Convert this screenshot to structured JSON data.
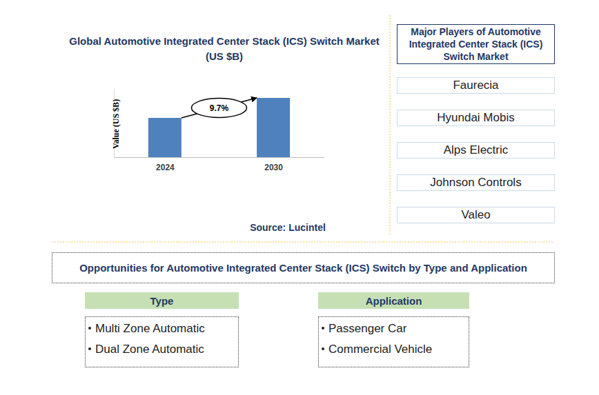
{
  "chart_data": {
    "type": "bar",
    "title": "Global Automotive Integrated Center Stack (ICS) Switch Market (US $B)",
    "ylabel": "Value (US $B)",
    "categories": [
      "2024",
      "2030"
    ],
    "values": [
      57,
      86
    ],
    "color": "#4f81bd",
    "ylim": [
      0,
      100
    ],
    "yticks": [],
    "tick_labels": "x",
    "annotation": "9.7%"
  },
  "source": "Source: Lucintel",
  "players": {
    "title": "Major Players of Automotive Integrated Center Stack (ICS) Switch Market",
    "items": [
      "Faurecia",
      "Hyundai Mobis",
      "Alps Electric",
      "Johnson Controls",
      "Valeo"
    ]
  },
  "opportunities": {
    "title": "Opportunities for Automotive Integrated Center Stack (ICS) Switch by Type and Application",
    "type": {
      "title": "Type",
      "items": [
        "Multi Zone Automatic",
        "Dual Zone Automatic"
      ]
    },
    "application": {
      "title": "Application",
      "items": [
        "Passenger Car",
        "Commercial Vehicle"
      ]
    }
  }
}
